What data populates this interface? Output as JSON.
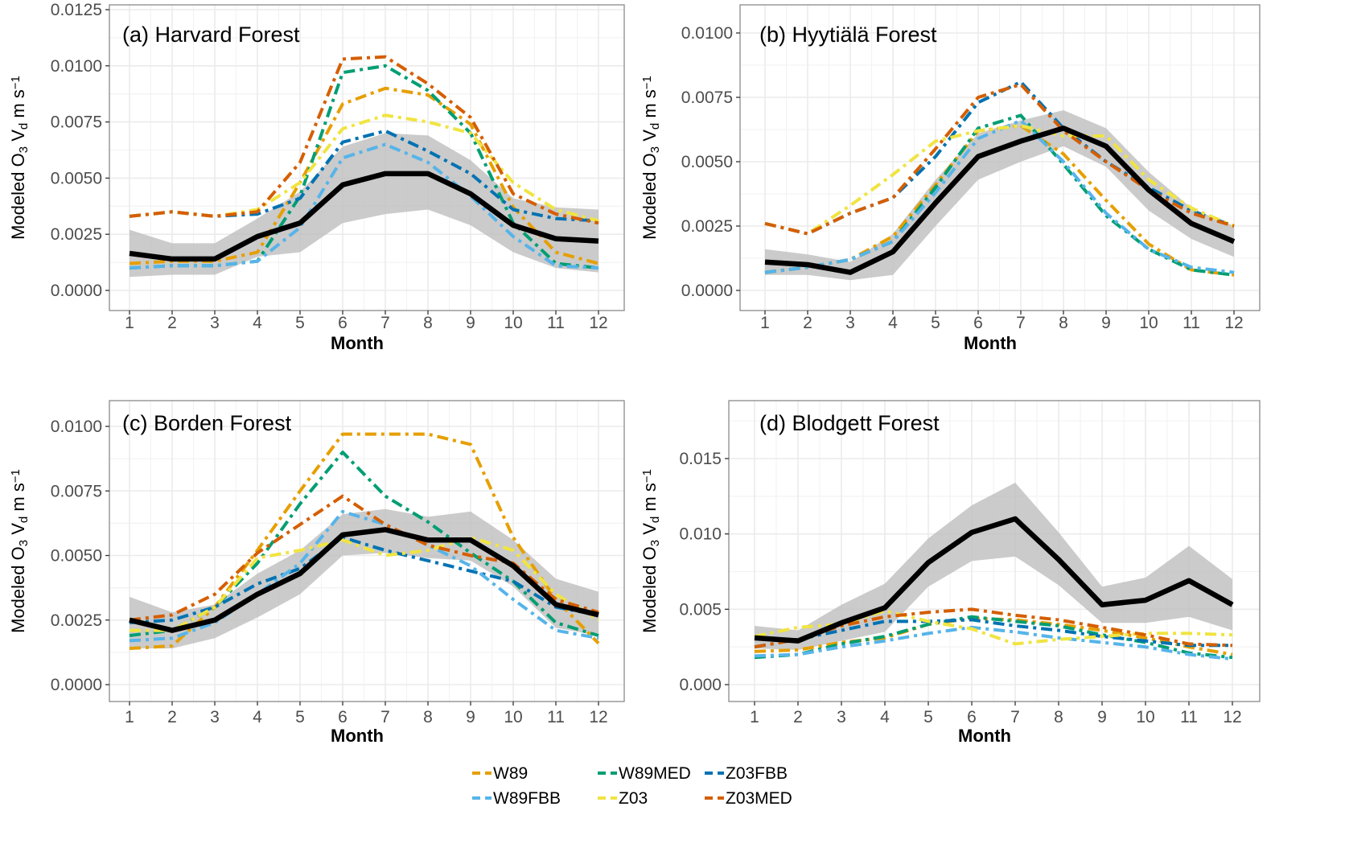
{
  "figure": {
    "legend": [
      {
        "name": "W89",
        "color": "#E69F00"
      },
      {
        "name": "W89MED",
        "color": "#009E73"
      },
      {
        "name": "Z03FBB",
        "color": "#0072B2"
      },
      {
        "name": "W89FBB",
        "color": "#56B4E9"
      },
      {
        "name": "Z03",
        "color": "#F0E442"
      },
      {
        "name": "Z03MED",
        "color": "#D55E00"
      }
    ],
    "observed_color": "#000000",
    "ribbon_color": "#BDBDBD"
  },
  "chart_data": [
    {
      "type": "line",
      "title": "(a) Harvard Forest",
      "xlabel": "Month",
      "ylabel": "Modeled O3  Vd m s-1",
      "x": [
        1,
        2,
        3,
        4,
        5,
        6,
        7,
        8,
        9,
        10,
        11,
        12
      ],
      "xticks": [
        "1",
        "2",
        "3",
        "4",
        "5",
        "6",
        "7",
        "8",
        "9",
        "10",
        "11",
        "12"
      ],
      "ylim": [
        0,
        0.0125
      ],
      "yticks": [
        "0.0000",
        "0.0025",
        "0.0050",
        "0.0075",
        "0.0100",
        "0.0125"
      ],
      "ytick_values": [
        0,
        0.0025,
        0.005,
        0.0075,
        0.01,
        0.0125
      ],
      "grid": true,
      "observed": {
        "values": [
          0.00165,
          0.0014,
          0.0014,
          0.0024,
          0.003,
          0.0047,
          0.0052,
          0.0052,
          0.0043,
          0.0029,
          0.0023,
          0.0022
        ],
        "lower": [
          0.0006,
          0.0007,
          0.0007,
          0.0015,
          0.0017,
          0.003,
          0.0034,
          0.0036,
          0.0029,
          0.0017,
          0.001,
          0.0008
        ],
        "upper": [
          0.0027,
          0.0021,
          0.0021,
          0.0032,
          0.0044,
          0.0064,
          0.007,
          0.0069,
          0.0058,
          0.0041,
          0.0037,
          0.0036
        ]
      },
      "series": [
        {
          "name": "W89",
          "values": [
            0.0012,
            0.0013,
            0.0013,
            0.0017,
            0.0048,
            0.0083,
            0.009,
            0.0087,
            0.0074,
            0.0037,
            0.0017,
            0.0012
          ]
        },
        {
          "name": "W89MED",
          "values": [
            0.001,
            0.0011,
            0.0011,
            0.0013,
            0.0042,
            0.0097,
            0.01,
            0.0089,
            0.007,
            0.003,
            0.0012,
            0.001
          ]
        },
        {
          "name": "Z03FBB",
          "values": [
            0.0033,
            0.0035,
            0.0033,
            0.0034,
            0.0041,
            0.0066,
            0.0071,
            0.0062,
            0.0052,
            0.0036,
            0.0032,
            0.0031
          ]
        },
        {
          "name": "W89FBB",
          "values": [
            0.001,
            0.0011,
            0.0011,
            0.0013,
            0.0028,
            0.0059,
            0.0065,
            0.0057,
            0.0042,
            0.0024,
            0.0011,
            0.001
          ]
        },
        {
          "name": "Z03",
          "values": [
            0.0033,
            0.0035,
            0.0033,
            0.0036,
            0.0048,
            0.0072,
            0.0078,
            0.0075,
            0.007,
            0.0048,
            0.0036,
            0.0031
          ]
        },
        {
          "name": "Z03MED",
          "values": [
            0.0033,
            0.0035,
            0.0033,
            0.0035,
            0.0057,
            0.0103,
            0.0104,
            0.0092,
            0.0077,
            0.0043,
            0.0034,
            0.003
          ]
        }
      ]
    },
    {
      "type": "line",
      "title": "(b) Hyytiälä Forest",
      "xlabel": "Month",
      "ylabel": "Modeled O3  Vd m s-1",
      "x": [
        1,
        2,
        3,
        4,
        5,
        6,
        7,
        8,
        9,
        10,
        11,
        12
      ],
      "xticks": [
        "1",
        "2",
        "3",
        "4",
        "5",
        "6",
        "7",
        "8",
        "9",
        "10",
        "11",
        "12"
      ],
      "ylim": [
        0,
        0.01
      ],
      "yticks": [
        "0.0000",
        "0.0025",
        "0.0050",
        "0.0075",
        "0.0100"
      ],
      "ytick_values": [
        0,
        0.0025,
        0.005,
        0.0075,
        0.01
      ],
      "grid": true,
      "observed": {
        "values": [
          0.0011,
          0.001,
          0.0007,
          0.0015,
          0.0034,
          0.0052,
          0.0058,
          0.0063,
          0.0056,
          0.0039,
          0.0026,
          0.0019
        ],
        "lower": [
          0.0006,
          0.0006,
          0.0004,
          0.0006,
          0.0025,
          0.0043,
          0.005,
          0.0056,
          0.0048,
          0.0031,
          0.002,
          0.0013
        ],
        "upper": [
          0.0016,
          0.0014,
          0.0011,
          0.0022,
          0.0043,
          0.0061,
          0.0066,
          0.007,
          0.0063,
          0.0046,
          0.0032,
          0.0025
        ]
      },
      "series": [
        {
          "name": "W89",
          "values": [
            0.0007,
            0.0009,
            0.0012,
            0.0021,
            0.0041,
            0.0062,
            0.0064,
            0.0053,
            0.0035,
            0.0018,
            0.0008,
            0.0006
          ]
        },
        {
          "name": "W89MED",
          "values": [
            0.0007,
            0.0009,
            0.0012,
            0.0019,
            0.004,
            0.0063,
            0.0068,
            0.0049,
            0.0029,
            0.0016,
            0.0008,
            0.0006
          ]
        },
        {
          "name": "Z03FBB",
          "values": [
            0.0026,
            0.0022,
            0.003,
            0.0036,
            0.0052,
            0.0073,
            0.0081,
            0.0063,
            0.005,
            0.004,
            0.0031,
            0.0025
          ]
        },
        {
          "name": "W89FBB",
          "values": [
            0.0007,
            0.0009,
            0.0012,
            0.0019,
            0.0038,
            0.0059,
            0.0066,
            0.005,
            0.003,
            0.0016,
            0.0009,
            0.0007
          ]
        },
        {
          "name": "Z03",
          "values": [
            0.0026,
            0.0022,
            0.0033,
            0.0045,
            0.0058,
            0.0062,
            0.0064,
            0.006,
            0.006,
            0.0043,
            0.0032,
            0.0025
          ]
        },
        {
          "name": "Z03MED",
          "values": [
            0.0026,
            0.0022,
            0.003,
            0.0036,
            0.0055,
            0.0075,
            0.008,
            0.0062,
            0.005,
            0.0039,
            0.003,
            0.0025
          ]
        }
      ]
    },
    {
      "type": "line",
      "title": "(c) Borden Forest",
      "xlabel": "Month",
      "ylabel": "Modeled O3  Vd m s-1",
      "x": [
        1,
        2,
        3,
        4,
        5,
        6,
        7,
        8,
        9,
        10,
        11,
        12
      ],
      "xticks": [
        "1",
        "2",
        "3",
        "4",
        "5",
        "6",
        "7",
        "8",
        "9",
        "10",
        "11",
        "12"
      ],
      "ylim": [
        0,
        0.01
      ],
      "yticks": [
        "0.0000",
        "0.0025",
        "0.0050",
        "0.0075",
        "0.0100"
      ],
      "ytick_values": [
        0,
        0.0025,
        0.005,
        0.0075,
        0.01
      ],
      "grid": true,
      "observed": {
        "values": [
          0.0025,
          0.0021,
          0.0025,
          0.0035,
          0.0043,
          0.0058,
          0.006,
          0.0056,
          0.0056,
          0.0046,
          0.0031,
          0.0027
        ],
        "lower": [
          0.0014,
          0.0014,
          0.0018,
          0.0026,
          0.0035,
          0.005,
          0.0051,
          0.0049,
          0.0048,
          0.0038,
          0.0022,
          0.0019
        ],
        "upper": [
          0.0034,
          0.0028,
          0.0031,
          0.0043,
          0.0052,
          0.0066,
          0.0068,
          0.0065,
          0.0067,
          0.0056,
          0.0041,
          0.0036
        ]
      },
      "series": [
        {
          "name": "W89",
          "values": [
            0.0014,
            0.0015,
            0.003,
            0.0052,
            0.0075,
            0.0097,
            0.0097,
            0.0097,
            0.0093,
            0.0057,
            0.0033,
            0.0016
          ]
        },
        {
          "name": "W89MED",
          "values": [
            0.0019,
            0.0021,
            0.003,
            0.0047,
            0.007,
            0.009,
            0.0073,
            0.0063,
            0.0051,
            0.004,
            0.0024,
            0.0019
          ]
        },
        {
          "name": "Z03FBB",
          "values": [
            0.0024,
            0.0025,
            0.003,
            0.0039,
            0.0045,
            0.0057,
            0.0052,
            0.0048,
            0.0044,
            0.004,
            0.003,
            0.0027
          ]
        },
        {
          "name": "W89FBB",
          "values": [
            0.0017,
            0.0018,
            0.0024,
            0.0035,
            0.0047,
            0.0067,
            0.0062,
            0.0054,
            0.0046,
            0.0033,
            0.0021,
            0.0018
          ]
        },
        {
          "name": "Z03",
          "values": [
            0.0021,
            0.0021,
            0.003,
            0.0049,
            0.0052,
            0.0056,
            0.005,
            0.0052,
            0.0057,
            0.0052,
            0.0035,
            0.0025
          ]
        },
        {
          "name": "Z03MED",
          "values": [
            0.0025,
            0.0027,
            0.0035,
            0.0051,
            0.0062,
            0.0073,
            0.0062,
            0.0054,
            0.005,
            0.0047,
            0.0033,
            0.0028
          ]
        }
      ]
    },
    {
      "type": "line",
      "title": "(d) Blodgett Forest",
      "xlabel": "Month",
      "ylabel": "Modeled O3  Vd m s-1",
      "x": [
        1,
        2,
        3,
        4,
        5,
        6,
        7,
        8,
        9,
        10,
        11,
        12
      ],
      "xticks": [
        "1",
        "2",
        "3",
        "4",
        "5",
        "6",
        "7",
        "8",
        "9",
        "10",
        "11",
        "12"
      ],
      "ylim": [
        0,
        0.015
      ],
      "yticks": [
        "0.000",
        "0.005",
        "0.010",
        "0.015"
      ],
      "ytick_values": [
        0,
        0.005,
        0.01,
        0.015
      ],
      "grid": true,
      "observed": {
        "values": [
          0.0031,
          0.0029,
          0.0041,
          0.0051,
          0.0081,
          0.0101,
          0.011,
          0.0083,
          0.0053,
          0.0056,
          0.0069,
          0.0053
        ],
        "lower": [
          0.0024,
          0.0023,
          0.0029,
          0.0035,
          0.0065,
          0.0082,
          0.0085,
          0.0066,
          0.0041,
          0.0041,
          0.0045,
          0.0036
        ],
        "upper": [
          0.0039,
          0.0036,
          0.0053,
          0.0067,
          0.0097,
          0.0119,
          0.0134,
          0.0101,
          0.0065,
          0.0071,
          0.0092,
          0.007
        ]
      },
      "series": [
        {
          "name": "W89",
          "values": [
            0.0022,
            0.0023,
            0.0028,
            0.0031,
            0.004,
            0.0044,
            0.0043,
            0.004,
            0.0036,
            0.0031,
            0.0025,
            0.002
          ]
        },
        {
          "name": "W89MED",
          "values": [
            0.0018,
            0.002,
            0.0027,
            0.0032,
            0.004,
            0.0045,
            0.0042,
            0.0039,
            0.0033,
            0.0028,
            0.0021,
            0.0018
          ]
        },
        {
          "name": "Z03FBB",
          "values": [
            0.0025,
            0.003,
            0.0036,
            0.0042,
            0.0042,
            0.0043,
            0.0039,
            0.0036,
            0.0032,
            0.0029,
            0.0026,
            0.0026
          ]
        },
        {
          "name": "W89FBB",
          "values": [
            0.0019,
            0.002,
            0.0025,
            0.0029,
            0.0034,
            0.0038,
            0.0035,
            0.0031,
            0.0028,
            0.0025,
            0.002,
            0.0017
          ]
        },
        {
          "name": "Z03",
          "values": [
            0.0032,
            0.0038,
            0.004,
            0.0049,
            0.0042,
            0.0037,
            0.0027,
            0.003,
            0.0032,
            0.0034,
            0.0034,
            0.0033
          ]
        },
        {
          "name": "Z03MED",
          "values": [
            0.0025,
            0.003,
            0.0039,
            0.0045,
            0.0048,
            0.005,
            0.0046,
            0.0043,
            0.0038,
            0.0033,
            0.0027,
            0.0026
          ]
        }
      ]
    }
  ]
}
